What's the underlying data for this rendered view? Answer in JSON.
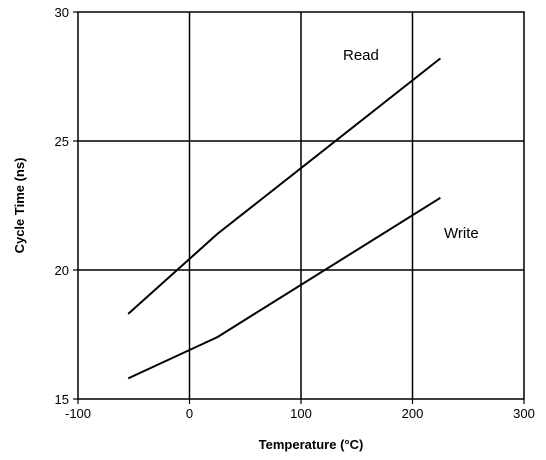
{
  "chart_data": {
    "type": "line",
    "xlabel": "Temperature  (°C)",
    "ylabel": "Cycle Time  (ns)",
    "xlim": [
      -100,
      300
    ],
    "ylim": [
      15,
      30
    ],
    "xticks": [
      -100,
      0,
      100,
      200,
      300
    ],
    "yticks": [
      15,
      20,
      25,
      30
    ],
    "grid": true,
    "series": [
      {
        "name": "Read",
        "x": [
          -55,
          25,
          225
        ],
        "y": [
          18.3,
          21.4,
          28.2
        ]
      },
      {
        "name": "Write",
        "x": [
          -55,
          25,
          225
        ],
        "y": [
          15.8,
          17.4,
          22.8
        ]
      }
    ]
  }
}
